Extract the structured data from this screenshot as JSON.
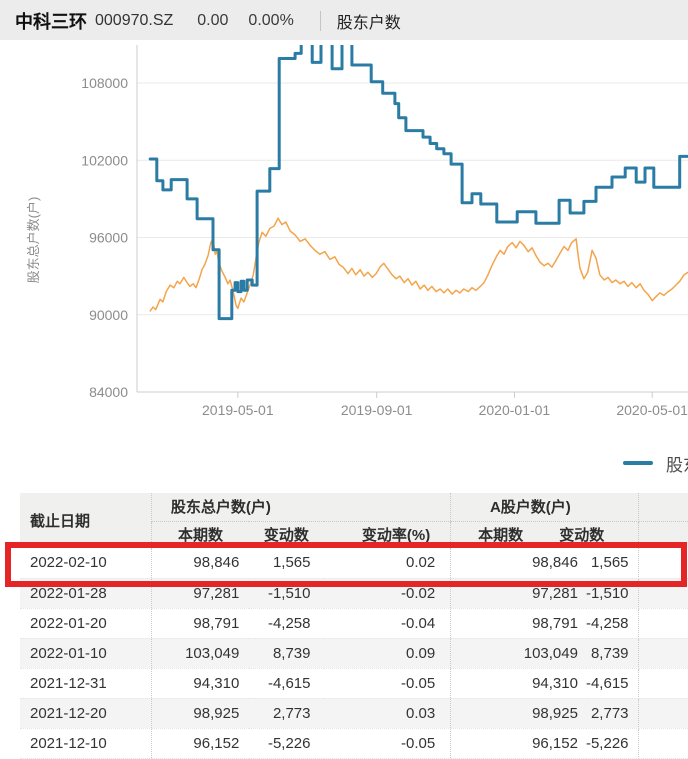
{
  "header": {
    "stock_name": "中科三环",
    "stock_code": "000970.SZ",
    "price": "0.00",
    "change_pct": "0.00%",
    "tab": "股东户数"
  },
  "colors": {
    "accent_blue": "#2a7ca5",
    "accent_orange": "#f4a44a",
    "highlight_red": "#e52626",
    "axis_text": "#8c8c8c"
  },
  "chart_data": {
    "type": "line",
    "title": "",
    "ylabel": "股东总户数(户)",
    "ylim": [
      84000,
      111000
    ],
    "y_ticks": [
      108000,
      102000,
      96000,
      90000,
      84000
    ],
    "x_ticks": [
      {
        "label": "2019-05-01",
        "pos": 0.183
      },
      {
        "label": "2019-09-01",
        "pos": 0.435
      },
      {
        "label": "2020-01-01",
        "pos": 0.685
      },
      {
        "label": "2020-05-01",
        "pos": 0.935
      }
    ],
    "grid": true,
    "legend_position": "bottom-right",
    "legend": [
      {
        "label": "股东总户数",
        "color": "#2a7ca5"
      }
    ],
    "series": [
      {
        "name": "",
        "type": "line",
        "color": "#f4a44a",
        "width": 1.5,
        "points": [
          [
            0.024,
            90300
          ],
          [
            0.029,
            90600
          ],
          [
            0.034,
            90400
          ],
          [
            0.042,
            91200
          ],
          [
            0.047,
            91000
          ],
          [
            0.053,
            91800
          ],
          [
            0.06,
            92300
          ],
          [
            0.067,
            92100
          ],
          [
            0.073,
            92600
          ],
          [
            0.078,
            92400
          ],
          [
            0.085,
            92900
          ],
          [
            0.091,
            92500
          ],
          [
            0.096,
            92200
          ],
          [
            0.102,
            92400
          ],
          [
            0.107,
            92100
          ],
          [
            0.113,
            92800
          ],
          [
            0.118,
            93500
          ],
          [
            0.123,
            93900
          ],
          [
            0.129,
            94600
          ],
          [
            0.134,
            95600
          ],
          [
            0.138,
            95900
          ],
          [
            0.142,
            94700
          ],
          [
            0.145,
            94900
          ],
          [
            0.149,
            94000
          ],
          [
            0.154,
            93400
          ],
          [
            0.16,
            92900
          ],
          [
            0.165,
            92400
          ],
          [
            0.169,
            92700
          ],
          [
            0.174,
            91900
          ],
          [
            0.18,
            90700
          ],
          [
            0.183,
            90500
          ],
          [
            0.189,
            91300
          ],
          [
            0.194,
            91000
          ],
          [
            0.2,
            91700
          ],
          [
            0.205,
            92300
          ],
          [
            0.211,
            93100
          ],
          [
            0.216,
            94400
          ],
          [
            0.221,
            95600
          ],
          [
            0.227,
            96400
          ],
          [
            0.234,
            96100
          ],
          [
            0.241,
            96700
          ],
          [
            0.249,
            96900
          ],
          [
            0.256,
            97500
          ],
          [
            0.263,
            97000
          ],
          [
            0.27,
            97200
          ],
          [
            0.278,
            96500
          ],
          [
            0.287,
            96200
          ],
          [
            0.296,
            95700
          ],
          [
            0.305,
            95900
          ],
          [
            0.314,
            95400
          ],
          [
            0.323,
            95000
          ],
          [
            0.332,
            94700
          ],
          [
            0.341,
            94900
          ],
          [
            0.35,
            94300
          ],
          [
            0.359,
            94500
          ],
          [
            0.367,
            93900
          ],
          [
            0.374,
            93700
          ],
          [
            0.383,
            93200
          ],
          [
            0.39,
            93600
          ],
          [
            0.397,
            93100
          ],
          [
            0.405,
            93500
          ],
          [
            0.412,
            93000
          ],
          [
            0.419,
            93300
          ],
          [
            0.427,
            92900
          ],
          [
            0.434,
            93200
          ],
          [
            0.441,
            93700
          ],
          [
            0.448,
            94000
          ],
          [
            0.456,
            93500
          ],
          [
            0.463,
            93100
          ],
          [
            0.47,
            92800
          ],
          [
            0.477,
            93000
          ],
          [
            0.485,
            92500
          ],
          [
            0.492,
            92800
          ],
          [
            0.499,
            92300
          ],
          [
            0.506,
            92600
          ],
          [
            0.514,
            92000
          ],
          [
            0.521,
            92300
          ],
          [
            0.528,
            91900
          ],
          [
            0.535,
            92200
          ],
          [
            0.543,
            91800
          ],
          [
            0.55,
            92000
          ],
          [
            0.557,
            91700
          ],
          [
            0.564,
            92000
          ],
          [
            0.572,
            91600
          ],
          [
            0.579,
            91900
          ],
          [
            0.586,
            91700
          ],
          [
            0.593,
            92000
          ],
          [
            0.601,
            91800
          ],
          [
            0.608,
            92100
          ],
          [
            0.615,
            91900
          ],
          [
            0.623,
            92200
          ],
          [
            0.63,
            92500
          ],
          [
            0.637,
            93100
          ],
          [
            0.644,
            93800
          ],
          [
            0.652,
            94500
          ],
          [
            0.659,
            95000
          ],
          [
            0.666,
            94700
          ],
          [
            0.673,
            95300
          ],
          [
            0.681,
            95600
          ],
          [
            0.688,
            95200
          ],
          [
            0.695,
            95700
          ],
          [
            0.702,
            95400
          ],
          [
            0.71,
            94900
          ],
          [
            0.717,
            95200
          ],
          [
            0.724,
            94600
          ],
          [
            0.731,
            94100
          ],
          [
            0.739,
            93800
          ],
          [
            0.746,
            94000
          ],
          [
            0.753,
            93700
          ],
          [
            0.76,
            94200
          ],
          [
            0.768,
            94800
          ],
          [
            0.775,
            95300
          ],
          [
            0.782,
            95000
          ],
          [
            0.789,
            95600
          ],
          [
            0.797,
            95900
          ],
          [
            0.8,
            94800
          ],
          [
            0.804,
            93600
          ],
          [
            0.811,
            92800
          ],
          [
            0.818,
            93300
          ],
          [
            0.826,
            95000
          ],
          [
            0.833,
            94400
          ],
          [
            0.84,
            93100
          ],
          [
            0.848,
            92700
          ],
          [
            0.855,
            92900
          ],
          [
            0.862,
            92500
          ],
          [
            0.869,
            92700
          ],
          [
            0.877,
            92400
          ],
          [
            0.884,
            92600
          ],
          [
            0.891,
            92200
          ],
          [
            0.898,
            92500
          ],
          [
            0.906,
            92100
          ],
          [
            0.913,
            92400
          ],
          [
            0.92,
            91900
          ],
          [
            0.927,
            91600
          ],
          [
            0.935,
            91100
          ],
          [
            0.942,
            91400
          ],
          [
            0.949,
            91700
          ],
          [
            0.956,
            91500
          ],
          [
            0.964,
            91800
          ],
          [
            0.971,
            92000
          ],
          [
            0.978,
            92300
          ],
          [
            0.985,
            92600
          ],
          [
            0.993,
            93100
          ],
          [
            1.0,
            93300
          ]
        ]
      },
      {
        "name": "股东总户数",
        "type": "step",
        "color": "#2a7ca5",
        "width": 3,
        "points": [
          [
            0.024,
            102100
          ],
          [
            0.036,
            100400
          ],
          [
            0.047,
            99700
          ],
          [
            0.062,
            100500
          ],
          [
            0.091,
            99000
          ],
          [
            0.109,
            97450
          ],
          [
            0.138,
            95050
          ],
          [
            0.149,
            89700
          ],
          [
            0.172,
            91900
          ],
          [
            0.178,
            92500
          ],
          [
            0.183,
            91800
          ],
          [
            0.189,
            92600
          ],
          [
            0.194,
            91900
          ],
          [
            0.2,
            92700
          ],
          [
            0.209,
            92300
          ],
          [
            0.218,
            99600
          ],
          [
            0.241,
            101350
          ],
          [
            0.258,
            109900
          ],
          [
            0.287,
            110300
          ],
          [
            0.298,
            111400
          ],
          [
            0.318,
            109600
          ],
          [
            0.334,
            111400
          ],
          [
            0.354,
            109100
          ],
          [
            0.372,
            111300
          ],
          [
            0.39,
            109400
          ],
          [
            0.425,
            108100
          ],
          [
            0.446,
            107200
          ],
          [
            0.468,
            106400
          ],
          [
            0.475,
            105300
          ],
          [
            0.488,
            104300
          ],
          [
            0.519,
            103800
          ],
          [
            0.532,
            103300
          ],
          [
            0.544,
            102900
          ],
          [
            0.557,
            102500
          ],
          [
            0.57,
            101700
          ],
          [
            0.59,
            98700
          ],
          [
            0.608,
            99400
          ],
          [
            0.624,
            98600
          ],
          [
            0.653,
            97200
          ],
          [
            0.69,
            98000
          ],
          [
            0.724,
            97100
          ],
          [
            0.766,
            98900
          ],
          [
            0.786,
            97900
          ],
          [
            0.811,
            98800
          ],
          [
            0.833,
            99900
          ],
          [
            0.862,
            100700
          ],
          [
            0.886,
            101400
          ],
          [
            0.906,
            100300
          ],
          [
            0.922,
            101400
          ],
          [
            0.938,
            99900
          ],
          [
            0.985,
            102300
          ],
          [
            1.0,
            102300
          ]
        ]
      }
    ]
  },
  "table": {
    "date_header": "截止日期",
    "group_headers": [
      "股东总户数(户)",
      "A股户数(户)"
    ],
    "sub_headers": [
      "本期数",
      "变动数",
      "变动率(%)",
      "本期数",
      "变动数"
    ],
    "rows": [
      {
        "date": "2022-02-10",
        "total": "98,846",
        "total_chg": "1,565",
        "total_rate": "0.02",
        "a": "98,846",
        "a_chg": "1,565",
        "highlight": true
      },
      {
        "date": "2022-01-28",
        "total": "97,281",
        "total_chg": "-1,510",
        "total_rate": "-0.02",
        "a": "97,281",
        "a_chg": "-1,510",
        "highlight": false
      },
      {
        "date": "2022-01-20",
        "total": "98,791",
        "total_chg": "-4,258",
        "total_rate": "-0.04",
        "a": "98,791",
        "a_chg": "-4,258",
        "highlight": false
      },
      {
        "date": "2022-01-10",
        "total": "103,049",
        "total_chg": "8,739",
        "total_rate": "0.09",
        "a": "103,049",
        "a_chg": "8,739",
        "highlight": false
      },
      {
        "date": "2021-12-31",
        "total": "94,310",
        "total_chg": "-4,615",
        "total_rate": "-0.05",
        "a": "94,310",
        "a_chg": "-4,615",
        "highlight": false
      },
      {
        "date": "2021-12-20",
        "total": "98,925",
        "total_chg": "2,773",
        "total_rate": "0.03",
        "a": "98,925",
        "a_chg": "2,773",
        "highlight": false
      },
      {
        "date": "2021-12-10",
        "total": "96,152",
        "total_chg": "-5,226",
        "total_rate": "-0.05",
        "a": "96,152",
        "a_chg": "-5,226",
        "highlight": false
      }
    ]
  }
}
